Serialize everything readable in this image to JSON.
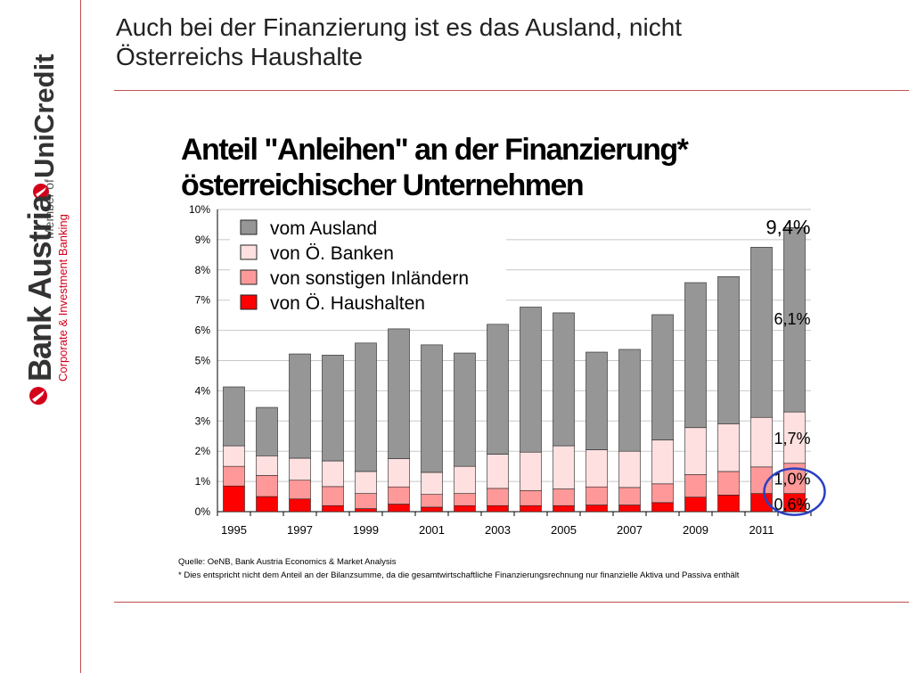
{
  "slide": {
    "title_line1": "Auch bei der Finanzierung ist es das Ausland, nicht",
    "title_line2": "Österreichs Haushalte"
  },
  "brand": {
    "logo_main": "Bank Austria",
    "logo_sub": "Corporate & Investment Banking",
    "member_text": "Member of",
    "parent_logo": "UniCredit"
  },
  "chart_data": {
    "type": "bar",
    "stacked": true,
    "title_line1": "Anteil \"Anleihen\" an der Finanzierung*",
    "title_line2": "österreichischer Unternehmen",
    "x": [
      1995,
      1996,
      1997,
      1998,
      1999,
      2000,
      2001,
      2002,
      2003,
      2004,
      2005,
      2006,
      2007,
      2008,
      2009,
      2010,
      2011,
      2012
    ],
    "x_tick_labels": [
      "1995",
      "",
      "1997",
      "",
      "1999",
      "",
      "2001",
      "",
      "2003",
      "",
      "2005",
      "",
      "2007",
      "",
      "2009",
      "",
      "2011",
      ""
    ],
    "y_tick_labels": [
      "0%",
      "1%",
      "2%",
      "3%",
      "4%",
      "5%",
      "6%",
      "7%",
      "8%",
      "9%",
      "10%"
    ],
    "ylim": [
      0,
      10
    ],
    "y_unit": "%",
    "grid": true,
    "legend_position": "top-left",
    "series": [
      {
        "name": "von Ö. Haushalten",
        "color": "#ff0000",
        "values": [
          0.85,
          0.5,
          0.42,
          0.2,
          0.1,
          0.25,
          0.15,
          0.2,
          0.2,
          0.2,
          0.2,
          0.22,
          0.22,
          0.3,
          0.48,
          0.55,
          0.6,
          0.6
        ]
      },
      {
        "name": "von sonstigen Inländern",
        "color": "#ff9999",
        "values": [
          0.65,
          0.7,
          0.62,
          0.63,
          0.5,
          0.57,
          0.42,
          0.4,
          0.57,
          0.5,
          0.55,
          0.6,
          0.58,
          0.62,
          0.75,
          0.78,
          0.88,
          1.0
        ]
      },
      {
        "name": "von Ö. Banken",
        "color": "#ffe0e0",
        "values": [
          0.68,
          0.65,
          0.73,
          0.85,
          0.73,
          0.93,
          0.73,
          0.9,
          1.13,
          1.27,
          1.43,
          1.23,
          1.2,
          1.45,
          1.55,
          1.58,
          1.64,
          1.7
        ]
      },
      {
        "name": "vom Ausland",
        "color": "#969696",
        "values": [
          1.95,
          1.6,
          3.45,
          3.5,
          4.25,
          4.3,
          4.22,
          3.75,
          4.3,
          4.8,
          4.4,
          3.23,
          3.37,
          4.15,
          4.8,
          4.87,
          5.63,
          6.1
        ]
      }
    ],
    "annotations": [
      {
        "text": "9,4%",
        "x": 2012,
        "y": 9.4
      },
      {
        "text": "6,1%",
        "x": 2012,
        "y": 6.4
      },
      {
        "text": "1,7%",
        "x": 2012,
        "y": 2.45
      },
      {
        "text": "1,0%",
        "x": 2012,
        "y": 1.1
      },
      {
        "text": "0,6%",
        "x": 2012,
        "y": 0.27
      }
    ],
    "highlight_circle": {
      "x": 2012,
      "y": 0.6,
      "color": "#2b3fc2"
    }
  },
  "source": {
    "line1": "Quelle: OeNB, Bank Austria Economics & Market Analysis",
    "line2": "* Dies entspricht nicht dem Anteil an der Bilanzsumme, da die gesamtwirtschaftliche Finanzierungsrechnung nur finanzielle Aktiva und Passiva enthält"
  }
}
